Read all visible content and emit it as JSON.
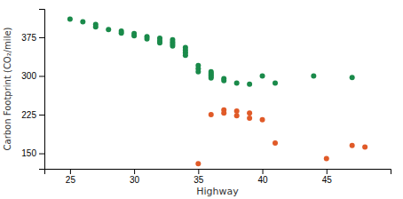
{
  "chart_data": {
    "type": "scatter",
    "xlabel": "Highway",
    "ylabel": "Carbon Footprint (CO₂/mile)",
    "series": [
      {
        "color": "#1a8a4a",
        "x": [
          25,
          26,
          27,
          27,
          28,
          29,
          29,
          30,
          30,
          31,
          31,
          32,
          32,
          32,
          33,
          33,
          33,
          33,
          34,
          34,
          34,
          34,
          35,
          35,
          35,
          36,
          36,
          36,
          36,
          36,
          37,
          37,
          38,
          39,
          40,
          41,
          44,
          47
        ],
        "values": [
          410,
          405,
          400,
          395,
          390,
          387,
          383,
          382,
          378,
          376,
          372,
          373,
          368,
          364,
          370,
          366,
          362,
          358,
          355,
          350,
          345,
          340,
          320,
          314,
          308,
          308,
          305,
          302,
          299,
          296,
          295,
          291,
          286,
          284,
          300,
          286,
          300,
          297
        ]
      },
      {
        "color": "#e05a28",
        "x": [
          35,
          36,
          37,
          37,
          38,
          38,
          39,
          39,
          40,
          41,
          45,
          47,
          48
        ],
        "values": [
          130,
          225,
          234,
          228,
          223,
          232,
          218,
          228,
          215,
          170,
          140,
          165,
          162
        ]
      }
    ],
    "xlim": [
      23,
      50
    ],
    "ylim": [
      120,
      430
    ],
    "xticks": [
      25,
      30,
      35,
      40,
      45
    ],
    "yticks": [
      150,
      225,
      300,
      375
    ],
    "grid": false
  }
}
